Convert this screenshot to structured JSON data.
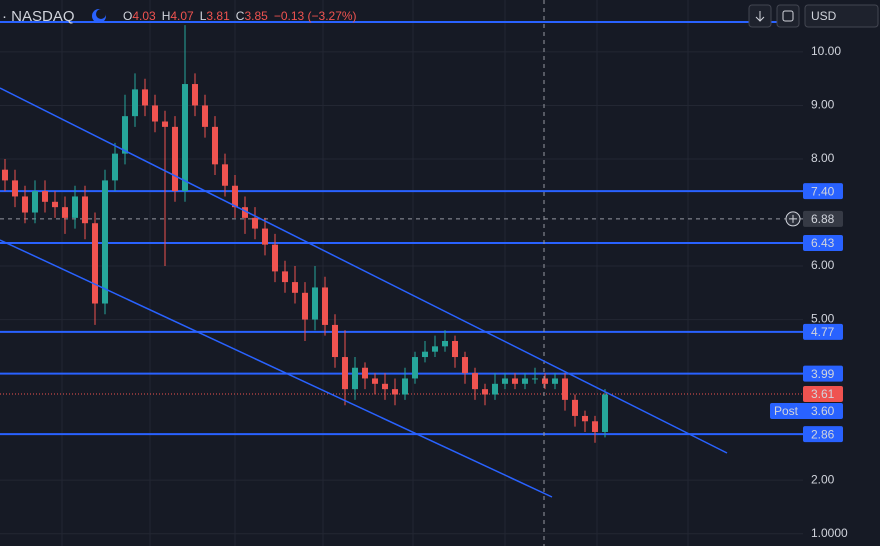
{
  "chart_data": {
    "type": "candlestick",
    "symbol": "· NASDAQ",
    "legend": [
      {
        "key": "O",
        "value": "4.03"
      },
      {
        "key": "H",
        "value": "4.07"
      },
      {
        "key": "L",
        "value": "3.81"
      },
      {
        "key": "C",
        "value": "3.85"
      }
    ],
    "change": "−0.13 (−3.27%)",
    "currency": "USD",
    "up_color": "#26a69a",
    "down_color": "#ef5350",
    "level_color": "#2962ff",
    "grid": true,
    "ylim": [
      0.77,
      10.97
    ],
    "yticks": [
      {
        "value": 10,
        "label": "10.00"
      },
      {
        "value": 9,
        "label": "9.00"
      },
      {
        "value": 8,
        "label": "8.00"
      },
      {
        "value": 6,
        "label": "6.00"
      },
      {
        "value": 5,
        "label": "5.00"
      },
      {
        "value": 2,
        "label": "2.00"
      },
      {
        "value": 1,
        "label": "1.0000"
      }
    ],
    "levels": [
      10.56,
      {
        "value": 7.4,
        "label": "7.40"
      },
      {
        "value": 6.43,
        "label": "6.43"
      },
      {
        "value": 4.77,
        "label": "4.77"
      },
      {
        "value": 3.99,
        "label": "3.99"
      },
      {
        "value": 2.86,
        "label": "2.86"
      }
    ],
    "crosshair": {
      "value": 6.88,
      "label": "6.88"
    },
    "last_price": {
      "value": 3.61,
      "label": "3.61"
    },
    "post_label": "Post",
    "post_price": {
      "value": 3.6,
      "label": "3.60"
    },
    "open": [
      7.8,
      7.6,
      7.3,
      7.0,
      7.4,
      7.2,
      7.1,
      6.9,
      7.3,
      6.8,
      5.3,
      7.6,
      8.1,
      8.8,
      9.3,
      9.0,
      8.7,
      8.6,
      7.4,
      9.4,
      9.0,
      8.6,
      7.9,
      7.5,
      7.1,
      6.9,
      6.7,
      6.4,
      5.9,
      5.7,
      5.5,
      5.0,
      5.6,
      4.9,
      4.3,
      3.7,
      4.1,
      3.9,
      3.8,
      3.7,
      3.6,
      3.9,
      4.3,
      4.4,
      4.5,
      4.6,
      4.3,
      4.0,
      3.7,
      3.6,
      3.8,
      3.9,
      3.8,
      3.9,
      3.9,
      3.8,
      3.9,
      3.5,
      3.2,
      3.1,
      2.9
    ],
    "high": [
      8.0,
      7.8,
      7.5,
      7.6,
      7.6,
      7.4,
      7.3,
      7.5,
      7.5,
      7.0,
      7.8,
      8.3,
      9.2,
      9.6,
      9.5,
      9.2,
      8.9,
      8.8,
      10.5,
      9.6,
      9.2,
      8.8,
      8.1,
      7.7,
      7.3,
      7.1,
      6.9,
      6.6,
      6.1,
      6.0,
      5.7,
      6.0,
      5.8,
      5.1,
      4.8,
      4.3,
      4.2,
      4.0,
      4.0,
      3.9,
      4.1,
      4.4,
      4.6,
      4.7,
      4.8,
      4.7,
      4.4,
      4.1,
      3.8,
      4.0,
      4.0,
      4.0,
      4.0,
      4.1,
      4.0,
      4.0,
      4.0,
      3.6,
      3.3,
      3.2,
      3.7
    ],
    "low": [
      7.4,
      7.1,
      6.8,
      6.8,
      7.0,
      6.9,
      6.6,
      6.7,
      6.5,
      4.9,
      5.1,
      7.4,
      7.9,
      8.6,
      8.8,
      8.5,
      6.0,
      7.2,
      7.2,
      8.8,
      8.4,
      7.7,
      7.3,
      6.9,
      6.6,
      6.5,
      6.2,
      5.7,
      5.5,
      5.3,
      4.6,
      4.8,
      4.7,
      4.1,
      3.4,
      3.5,
      3.7,
      3.6,
      3.5,
      3.4,
      3.5,
      3.8,
      4.2,
      4.3,
      4.4,
      4.1,
      3.8,
      3.5,
      3.4,
      3.5,
      3.7,
      3.7,
      3.7,
      3.8,
      3.7,
      3.7,
      3.3,
      3.0,
      2.9,
      2.7,
      2.8
    ],
    "close": [
      7.6,
      7.3,
      7.0,
      7.4,
      7.2,
      7.1,
      6.9,
      7.3,
      6.8,
      5.3,
      7.6,
      8.1,
      8.8,
      9.3,
      9.0,
      8.7,
      8.6,
      7.4,
      9.4,
      9.0,
      8.6,
      7.9,
      7.5,
      7.1,
      6.9,
      6.7,
      6.4,
      5.9,
      5.7,
      5.5,
      5.0,
      5.6,
      4.9,
      4.3,
      3.7,
      4.1,
      3.9,
      3.8,
      3.7,
      3.6,
      3.9,
      4.3,
      4.4,
      4.5,
      4.6,
      4.3,
      4.0,
      3.7,
      3.6,
      3.8,
      3.9,
      3.8,
      3.9,
      3.9,
      3.8,
      3.9,
      3.5,
      3.2,
      3.1,
      2.9,
      3.6
    ]
  }
}
